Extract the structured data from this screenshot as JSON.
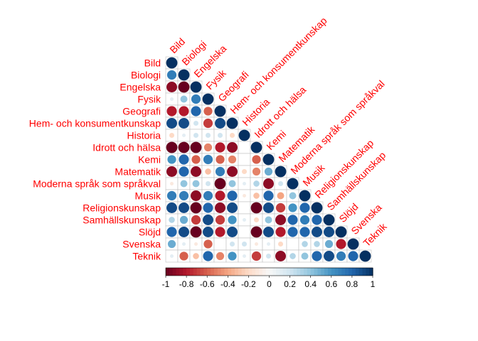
{
  "chart_data": {
    "type": "heatmap",
    "subtype": "correlation-lower-triangle",
    "labels": [
      "Bild",
      "Biologi",
      "Engelska",
      "Fysik",
      "Geografi",
      "Hem- och konsumentkunskap",
      "Historia",
      "Idrott och hälsa",
      "Kemi",
      "Matematik",
      "Moderna språk som språkval",
      "Musik",
      "Religionskunskap",
      "Samhällskunskap",
      "Slöjd",
      "Svenska",
      "Teknik"
    ],
    "matrix": [
      [
        1
      ],
      [
        0.7,
        1
      ],
      [
        -0.9,
        -1,
        1
      ],
      [
        0.1,
        0.4,
        0.7,
        1
      ],
      [
        -0.8,
        -0.8,
        0.8,
        -0.6,
        1
      ],
      [
        0.9,
        0.9,
        0.2,
        -0.7,
        0.9,
        1
      ],
      [
        -0.2,
        0.1,
        0.2,
        0.2,
        0.2,
        -0.2,
        1
      ],
      [
        -1,
        -1,
        -1,
        -0.5,
        -0.8,
        -0.9,
        0,
        1
      ],
      [
        0.6,
        0.8,
        -0.6,
        0.7,
        -0.6,
        -0.5,
        0,
        -0.6,
        1
      ],
      [
        -0.9,
        0.8,
        -0.9,
        -0.3,
        0.7,
        -0.9,
        -0.2,
        -0.5,
        0.5,
        1
      ],
      [
        -0.1,
        0.4,
        0.4,
        0.2,
        -1,
        0.4,
        0.1,
        0.3,
        -0.9,
        0.2,
        1
      ],
      [
        0.7,
        0.7,
        -0.9,
        0.7,
        -0.8,
        0.8,
        -0.1,
        -0.3,
        0.8,
        -0.4,
        0.4,
        1
      ],
      [
        0.9,
        0.9,
        -1,
        0.8,
        -0.9,
        0.9,
        0,
        -1,
        0.9,
        -0.7,
        0.6,
        0.8,
        1
      ],
      [
        0.3,
        0.5,
        -0.7,
        0.9,
        -0.7,
        0.6,
        0.1,
        -0.2,
        0.4,
        -0.9,
        0.8,
        0.7,
        0.8,
        1
      ],
      [
        0.8,
        0.9,
        -1,
        0.9,
        -0.8,
        0.9,
        0,
        -1,
        0.9,
        -0.8,
        0.8,
        0.8,
        0.9,
        0.9,
        1
      ],
      [
        0.5,
        0.1,
        -0.1,
        -0.6,
        0,
        0.2,
        0.2,
        -0.1,
        0.1,
        -0.2,
        0,
        0.3,
        0.3,
        0.5,
        -0.8,
        1
      ],
      [
        0.1,
        -0.6,
        -0.3,
        0.8,
        -0.5,
        0.6,
        0.1,
        -0.7,
        0.2,
        -0.9,
        0.3,
        0.4,
        0.8,
        0.9,
        0.7,
        0.8,
        1
      ]
    ],
    "color_scale": {
      "min": -1,
      "max": 1,
      "ticks": [
        "-1",
        "-0.8",
        "-0.6",
        "-0.4",
        "-0.2",
        "0",
        "0.2",
        "0.4",
        "0.6",
        "0.8",
        "1"
      ]
    },
    "colors": {
      "negative": "#67001F",
      "neutral": "#F7F7F7",
      "positive": "#053061",
      "label": "#FF0000",
      "grid": "#BEBEBE"
    },
    "title": "",
    "xlabel": "",
    "ylabel": ""
  }
}
